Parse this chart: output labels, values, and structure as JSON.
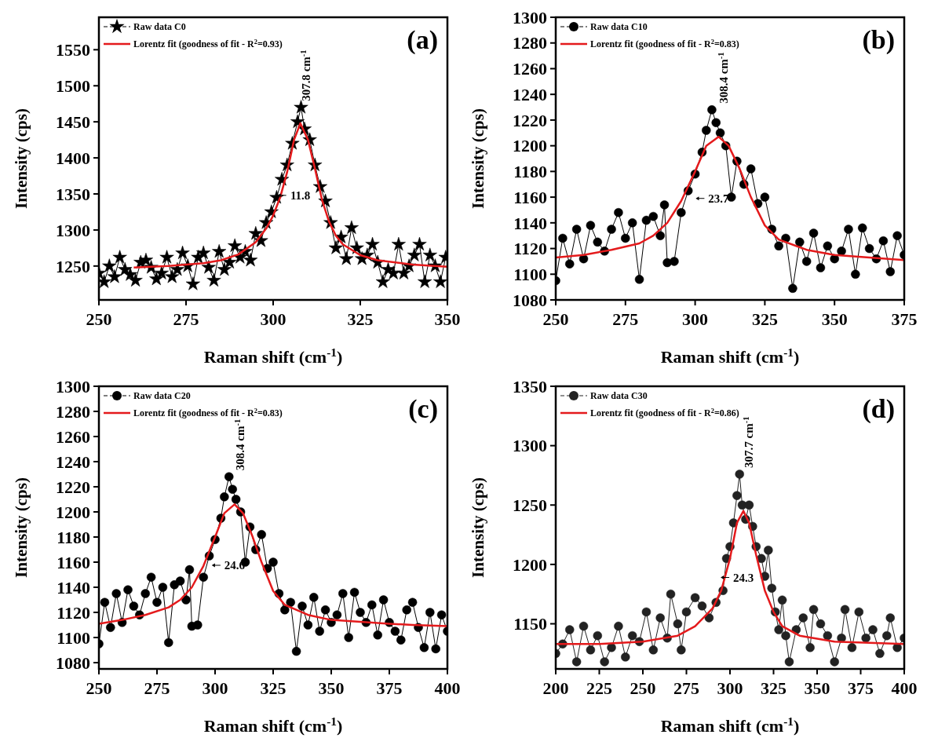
{
  "chart_data": [
    {
      "type": "line",
      "xlabel": "Raman shift (cm$^{-1}$)",
      "ylabel": "Intensity (cps)",
      "xlim": [
        250,
        350
      ],
      "xticks": [
        250,
        275,
        300,
        325,
        350
      ],
      "ylim": [
        1203,
        1595
      ],
      "yticks": [
        1250,
        1300,
        1350,
        1400,
        1450,
        1500,
        1550
      ],
      "marker": "star",
      "legend": "top left",
      "grid": false,
      "annotations": [
        "(a)",
        "307.8 cm$^{-1}$",
        "11.8"
      ],
      "series": [
        {
          "name": "Raw data C0",
          "color": "#000000",
          "x": [
            250,
            251.5,
            253,
            254.5,
            256,
            257.5,
            259,
            260.5,
            262,
            263.5,
            265,
            266.5,
            268,
            269.5,
            271,
            272.5,
            274,
            275.5,
            277,
            278.5,
            280,
            281.5,
            283,
            284.5,
            286,
            287.5,
            289,
            290.5,
            292,
            293.5,
            295,
            296.5,
            298,
            299.5,
            301,
            302.5,
            304,
            305.5,
            307,
            308,
            309,
            310.5,
            312,
            313.5,
            315,
            316.5,
            318,
            319.5,
            321,
            322.5,
            324,
            325.5,
            327,
            328.5,
            330,
            331.5,
            333,
            334.5,
            336,
            337.5,
            339,
            340.5,
            342,
            343.5,
            345,
            346.5,
            348,
            349.5
          ],
          "values": [
            1240,
            1228,
            1250,
            1235,
            1262,
            1245,
            1238,
            1230,
            1255,
            1258,
            1248,
            1232,
            1240,
            1262,
            1235,
            1245,
            1268,
            1250,
            1225,
            1262,
            1268,
            1248,
            1230,
            1270,
            1245,
            1255,
            1278,
            1262,
            1270,
            1258,
            1295,
            1285,
            1310,
            1325,
            1345,
            1370,
            1390,
            1420,
            1450,
            1470,
            1440,
            1425,
            1390,
            1360,
            1340,
            1310,
            1275,
            1290,
            1260,
            1303,
            1275,
            1260,
            1265,
            1280,
            1255,
            1228,
            1245,
            1240,
            1280,
            1240,
            1250,
            1265,
            1280,
            1228,
            1265,
            1250,
            1228,
            1262
          ]
        },
        {
          "name": "Lorentz fit (goodness of fit - R$^{2}$=0.93)",
          "color": "#e41a1c",
          "marker": "none",
          "x": [
            260,
            270,
            280,
            285,
            290,
            295,
            298,
            300,
            302,
            304,
            306,
            307.8,
            310,
            312,
            314,
            316,
            318,
            320,
            325,
            330,
            340,
            350
          ],
          "values": [
            1248,
            1250,
            1254,
            1258,
            1266,
            1283,
            1302,
            1320,
            1345,
            1380,
            1425,
            1448,
            1425,
            1385,
            1342,
            1312,
            1292,
            1280,
            1265,
            1258,
            1252,
            1249
          ]
        }
      ]
    },
    {
      "type": "line",
      "xlabel": "Raman shift (cm$^{-1}$)",
      "ylabel": "Intensity (cps)",
      "xlim": [
        250,
        375
      ],
      "xticks": [
        250,
        275,
        300,
        325,
        350,
        375
      ],
      "ylim": [
        1080,
        1300
      ],
      "yticks": [
        1080,
        1100,
        1120,
        1140,
        1160,
        1180,
        1200,
        1220,
        1240,
        1260,
        1280,
        1300
      ],
      "marker": "circle",
      "legend": "top left",
      "grid": false,
      "annotations": [
        "(b)",
        "308.4 cm$^{-1}$",
        "23.7"
      ],
      "series": [
        {
          "name": "Raw data C10",
          "color": "#000000",
          "x": [
            250,
            252.5,
            255,
            257.5,
            260,
            262.5,
            265,
            267.5,
            270,
            272.5,
            275,
            277.5,
            280,
            282.5,
            285,
            287.5,
            289,
            290,
            292.5,
            295,
            297.5,
            300,
            302.5,
            304,
            306,
            307.5,
            309,
            311,
            313,
            315,
            317.5,
            320,
            322.5,
            325,
            327.5,
            330,
            332.5,
            335,
            337.5,
            340,
            342.5,
            345,
            347.5,
            350,
            352.5,
            355,
            357.5,
            360,
            362.5,
            365,
            367.5,
            370,
            372.5,
            375
          ],
          "values": [
            1095,
            1128,
            1108,
            1135,
            1112,
            1138,
            1125,
            1118,
            1135,
            1148,
            1128,
            1140,
            1096,
            1142,
            1145,
            1130,
            1154,
            1109,
            1110,
            1148,
            1165,
            1178,
            1195,
            1212,
            1228,
            1218,
            1210,
            1200,
            1160,
            1188,
            1170,
            1182,
            1155,
            1160,
            1135,
            1122,
            1128,
            1089,
            1125,
            1110,
            1132,
            1105,
            1122,
            1112,
            1118,
            1135,
            1100,
            1136,
            1120,
            1112,
            1126,
            1102,
            1130,
            1115
          ]
        },
        {
          "name": "Lorentz fit (goodness of fit - R$^{2}$=0.83)",
          "color": "#e41a1c",
          "marker": "none",
          "x": [
            250,
            260,
            270,
            280,
            285,
            290,
            295,
            300,
            304,
            308.4,
            312,
            316,
            320,
            325,
            330,
            340,
            350,
            375
          ],
          "values": [
            1113,
            1115,
            1119,
            1124,
            1130,
            1140,
            1157,
            1180,
            1200,
            1207,
            1200,
            1182,
            1160,
            1138,
            1127,
            1119,
            1115,
            1111
          ]
        }
      ]
    },
    {
      "type": "line",
      "xlabel": "Raman shift (cm$^{-1}$)",
      "ylabel": "Intensity (cps)",
      "xlim": [
        250,
        400
      ],
      "xticks": [
        250,
        275,
        300,
        325,
        350,
        375,
        400
      ],
      "ylim": [
        1075,
        1300
      ],
      "yticks": [
        1080,
        1100,
        1120,
        1140,
        1160,
        1180,
        1200,
        1220,
        1240,
        1260,
        1280,
        1300
      ],
      "marker": "circle",
      "legend": "top left",
      "grid": false,
      "annotations": [
        "(c)",
        "308.4 cm$^{-1}$",
        "24.6"
      ],
      "series": [
        {
          "name": "Raw data C20",
          "color": "#000000",
          "x": [
            250,
            252.5,
            255,
            257.5,
            260,
            262.5,
            265,
            267.5,
            270,
            272.5,
            275,
            277.5,
            280,
            282.5,
            285,
            287.5,
            289,
            290,
            292.5,
            295,
            297.5,
            300,
            302.5,
            304,
            306,
            307.5,
            309,
            311,
            313,
            315,
            317.5,
            320,
            322.5,
            325,
            327.5,
            330,
            332.5,
            335,
            337.5,
            340,
            342.5,
            345,
            347.5,
            350,
            352.5,
            355,
            357.5,
            360,
            362.5,
            365,
            367.5,
            370,
            372.5,
            375,
            377.5,
            380,
            382.5,
            385,
            387.5,
            390,
            392.5,
            395,
            397.5,
            400
          ],
          "values": [
            1095,
            1128,
            1108,
            1135,
            1112,
            1138,
            1125,
            1118,
            1135,
            1148,
            1128,
            1140,
            1096,
            1142,
            1145,
            1130,
            1154,
            1109,
            1110,
            1148,
            1165,
            1178,
            1195,
            1212,
            1228,
            1218,
            1210,
            1200,
            1160,
            1188,
            1170,
            1182,
            1155,
            1160,
            1135,
            1122,
            1128,
            1089,
            1125,
            1110,
            1132,
            1105,
            1122,
            1112,
            1118,
            1135,
            1100,
            1136,
            1120,
            1112,
            1126,
            1102,
            1130,
            1112,
            1105,
            1098,
            1122,
            1128,
            1108,
            1092,
            1120,
            1091,
            1118,
            1105
          ]
        },
        {
          "name": "Lorentz fit (goodness of fit - R$^{2}$=0.83)",
          "color": "#e41a1c",
          "marker": "none",
          "x": [
            250,
            260,
            270,
            280,
            285,
            290,
            295,
            300,
            304,
            308.4,
            312,
            316,
            320,
            325,
            330,
            340,
            350,
            375,
            385,
            400
          ],
          "values": [
            1111,
            1114,
            1118,
            1124,
            1130,
            1140,
            1157,
            1180,
            1199,
            1206,
            1199,
            1181,
            1160,
            1137,
            1126,
            1118,
            1114,
            1111,
            1110,
            1109
          ]
        }
      ]
    },
    {
      "type": "line",
      "xlabel": "Raman shift (cm$^{-1}$)",
      "ylabel": "Intensity (cps)",
      "xlim": [
        200,
        400
      ],
      "xticks": [
        200,
        225,
        250,
        275,
        300,
        325,
        350,
        375,
        400
      ],
      "ylim": [
        1112,
        1350
      ],
      "yticks": [
        1150,
        1200,
        1250,
        1300,
        1350
      ],
      "marker": "circle",
      "legend": "top left",
      "grid": false,
      "annotations": [
        "(d)",
        "307.7 cm$^{-1}$",
        "24.3"
      ],
      "series": [
        {
          "name": "Raw data C30",
          "color": "#222222",
          "x": [
            200,
            204,
            208,
            212,
            216,
            220,
            224,
            228,
            232,
            236,
            240,
            244,
            248,
            252,
            256,
            260,
            264,
            266,
            270,
            272,
            275,
            280,
            284,
            288,
            292,
            296,
            298,
            300,
            302,
            304,
            305.5,
            307,
            309,
            311,
            313,
            315,
            318,
            320,
            322,
            324,
            326,
            328,
            330,
            332,
            334,
            338,
            342,
            346,
            348,
            352,
            356,
            360,
            364,
            366,
            370,
            374,
            378,
            382,
            386,
            390,
            392,
            396,
            400
          ],
          "values": [
            1125,
            1133,
            1145,
            1118,
            1148,
            1128,
            1140,
            1118,
            1130,
            1148,
            1122,
            1140,
            1135,
            1160,
            1128,
            1155,
            1138,
            1175,
            1150,
            1128,
            1160,
            1172,
            1165,
            1155,
            1168,
            1178,
            1205,
            1215,
            1235,
            1258,
            1276,
            1250,
            1238,
            1250,
            1232,
            1215,
            1205,
            1190,
            1212,
            1180,
            1160,
            1145,
            1170,
            1140,
            1118,
            1145,
            1155,
            1130,
            1162,
            1150,
            1140,
            1118,
            1138,
            1162,
            1130,
            1160,
            1138,
            1145,
            1125,
            1140,
            1155,
            1130,
            1138
          ]
        },
        {
          "name": "Lorentz fit (goodness of fit - R$^{2}$=0.86)",
          "color": "#e41a1c",
          "marker": "none",
          "x": [
            200,
            225,
            250,
            270,
            280,
            290,
            295,
            300,
            304,
            307.7,
            311,
            315,
            320,
            325,
            330,
            340,
            360,
            400
          ],
          "values": [
            1133,
            1133,
            1135,
            1140,
            1148,
            1163,
            1178,
            1205,
            1235,
            1245,
            1235,
            1208,
            1178,
            1160,
            1148,
            1140,
            1135,
            1133
          ]
        }
      ]
    }
  ]
}
